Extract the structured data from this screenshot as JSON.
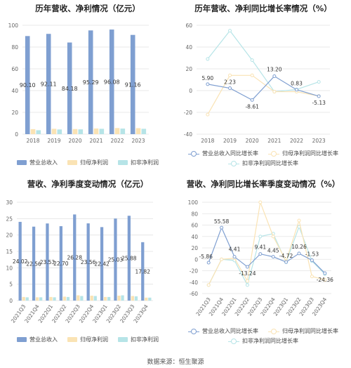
{
  "source": "数据来源：恒生聚源",
  "colors": {
    "revenue": "#7f9fd1",
    "net": "#fae3b4",
    "deducted": "#b6e4e7",
    "grid": "#e3e3e3",
    "axis_text": "#666666",
    "label_text": "#333333"
  },
  "chart_data": [
    {
      "type": "bar",
      "title": "历年营收、净利情况（亿元）",
      "categories": [
        "2018",
        "2019",
        "2020",
        "2021",
        "2022",
        "2023"
      ],
      "series": [
        {
          "name": "营业总收入",
          "values": [
            90.1,
            92.11,
            84.18,
            95.29,
            96.08,
            91.16
          ],
          "labels": [
            "90.10",
            "92.11",
            "84.18",
            "95.29",
            "96.08",
            "91.16"
          ]
        },
        {
          "name": "归母净利润",
          "values": [
            4.6,
            4.9,
            4.7,
            5.2,
            5.6,
            5.5
          ]
        },
        {
          "name": "扣非净利润",
          "values": [
            3.6,
            4.3,
            4.4,
            4.9,
            5.1,
            4.9
          ]
        }
      ],
      "ylim": [
        0,
        100
      ],
      "yticks": [
        0,
        20,
        40,
        60,
        80,
        100
      ],
      "legend": "bottom"
    },
    {
      "type": "line",
      "title": "历年营收、净利同比增长率情况（%）",
      "categories": [
        "2018",
        "2019",
        "2020",
        "2021",
        "2022",
        "2023"
      ],
      "series": [
        {
          "name": "营业总收入同比增长率",
          "values": [
            5.9,
            2.23,
            -8.61,
            13.2,
            0.83,
            -5.13
          ],
          "labels": [
            "5.90",
            "2.23",
            "-8.61",
            "13.20",
            "0.83",
            "-5.13"
          ]
        },
        {
          "name": "归母净利润同比增长率",
          "values": [
            -22,
            14,
            14,
            -1,
            -1,
            -5
          ]
        },
        {
          "name": "扣非净利润同比增长率",
          "values": [
            29,
            55,
            28,
            -1,
            1,
            8
          ]
        }
      ],
      "ylim": [
        -40,
        60
      ],
      "yticks": [
        -40,
        -20,
        0,
        20,
        40,
        60
      ],
      "legend": "bottom"
    },
    {
      "type": "bar",
      "title": "营收、净利季度变动情况（亿元）",
      "categories": [
        "2021Q3",
        "2021Q4",
        "2022Q1",
        "2022Q2",
        "2022Q3",
        "2022Q4",
        "2023Q1",
        "2023Q2",
        "2023Q3",
        "2023Q4"
      ],
      "series": [
        {
          "name": "营业总收入",
          "values": [
            24.02,
            22.56,
            23.53,
            22.7,
            26.28,
            23.56,
            22.42,
            25.03,
            25.88,
            17.82
          ],
          "labels": [
            "24.02",
            "22.56",
            "23.53",
            "22.70",
            "26.28",
            "23.56",
            "22.42",
            "25.03",
            "25.88",
            "17.82"
          ]
        },
        {
          "name": "归母净利润",
          "values": [
            1.1,
            1.0,
            1.1,
            1.2,
            1.6,
            1.5,
            1.1,
            1.5,
            1.4,
            0.9
          ]
        },
        {
          "name": "扣非净利润",
          "values": [
            1.0,
            1.0,
            1.0,
            1.1,
            1.4,
            1.4,
            1.1,
            1.6,
            1.3,
            0.9
          ]
        }
      ],
      "ylim": [
        0,
        30
      ],
      "yticks": [
        0,
        5,
        10,
        15,
        20,
        25,
        30
      ],
      "legend": "bottom"
    },
    {
      "type": "line",
      "title": "营收、净利同比增长率季度变动情况（%）",
      "categories": [
        "2021Q3",
        "2021Q4",
        "2022Q1",
        "2022Q2",
        "2022Q3",
        "2022Q4",
        "2023Q1",
        "2023Q2",
        "2023Q3",
        "2023Q4"
      ],
      "series": [
        {
          "name": "营业总收入同比增长率",
          "values": [
            -5.86,
            55.58,
            4.41,
            -13.24,
            9.41,
            4.45,
            -4.72,
            10.26,
            -1.53,
            -24.36
          ],
          "labels": [
            "-5.86",
            "55.58",
            "4.41",
            "-13.24",
            "9.41",
            "4.45",
            "-4.72",
            "10.26",
            "-1.53",
            "-24.36"
          ]
        },
        {
          "name": "归母净利润同比增长率",
          "values": [
            -45,
            0,
            2,
            -38,
            100,
            40,
            -3,
            68,
            -30,
            -36
          ]
        },
        {
          "name": "扣非净利润同比增长率",
          "values": [
            -45,
            0,
            -2,
            -45,
            40,
            45,
            -5,
            57,
            -3,
            -26
          ]
        }
      ],
      "ylim": [
        -60,
        100
      ],
      "yticks": [
        -60,
        -40,
        -20,
        0,
        20,
        40,
        60,
        80,
        100
      ],
      "legend": "bottom"
    }
  ]
}
